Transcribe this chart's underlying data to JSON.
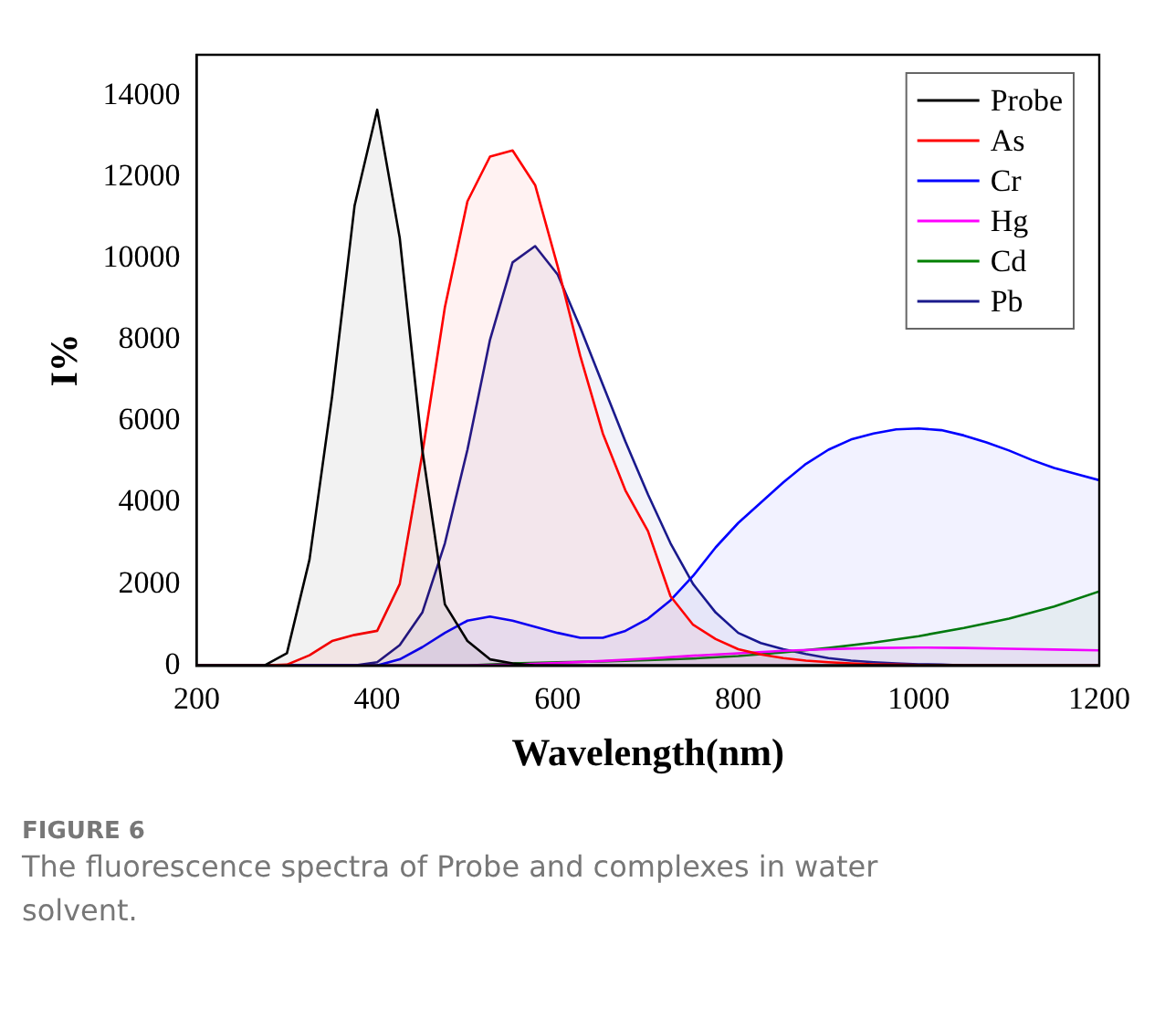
{
  "chart_data": {
    "type": "area",
    "xlabel": "Wavelength(nm)",
    "ylabel": "I%",
    "xlim": [
      200,
      1200
    ],
    "xticks": [
      200,
      400,
      600,
      800,
      1000,
      1200
    ],
    "ylim": [
      0,
      15000
    ],
    "yticks": [
      0,
      2000,
      4000,
      6000,
      8000,
      10000,
      12000,
      14000
    ],
    "grid": false,
    "legend": "top right",
    "line_style": "solid",
    "marker": "none",
    "annotations": [
      "FIGURE 6",
      "The fluorescence spectra of Probe and complexes in water solvent."
    ],
    "series": [
      {
        "name": "Probe",
        "color": "#000000",
        "x": [
          200,
          225,
          250,
          275,
          300,
          325,
          350,
          375,
          400,
          425,
          450,
          475,
          500,
          525,
          550,
          575,
          600,
          1200
        ],
        "values": [
          0,
          0,
          0,
          0,
          300,
          2600,
          6600,
          11300,
          13650,
          10500,
          5300,
          1500,
          600,
          150,
          50,
          0,
          0,
          0
        ]
      },
      {
        "name": "As",
        "color": "#ff0000",
        "x": [
          200,
          225,
          250,
          275,
          300,
          325,
          350,
          375,
          400,
          425,
          450,
          475,
          500,
          525,
          550,
          575,
          600,
          625,
          650,
          675,
          700,
          725,
          750,
          775,
          800,
          825,
          850,
          875,
          900,
          925,
          950,
          975,
          1000,
          1050,
          1200
        ],
        "values": [
          0,
          0,
          0,
          0,
          20,
          250,
          600,
          750,
          850,
          2000,
          5200,
          8800,
          11400,
          12500,
          12650,
          11800,
          9800,
          7600,
          5700,
          4300,
          3300,
          1700,
          1000,
          650,
          400,
          270,
          180,
          120,
          80,
          50,
          30,
          20,
          10,
          0,
          0
        ]
      },
      {
        "name": "Cr",
        "color": "#0000ff",
        "x": [
          200,
          375,
          400,
          425,
          450,
          475,
          500,
          525,
          550,
          575,
          600,
          625,
          650,
          675,
          700,
          725,
          750,
          775,
          800,
          825,
          850,
          875,
          900,
          925,
          950,
          975,
          1000,
          1025,
          1050,
          1075,
          1100,
          1125,
          1150,
          1175,
          1200
        ],
        "values": [
          0,
          0,
          0,
          150,
          450,
          800,
          1100,
          1200,
          1100,
          950,
          800,
          680,
          680,
          850,
          1150,
          1600,
          2200,
          2900,
          3500,
          4000,
          4500,
          4950,
          5300,
          5550,
          5700,
          5800,
          5820,
          5780,
          5650,
          5480,
          5280,
          5050,
          4850,
          4700,
          4550
        ]
      },
      {
        "name": "Hg",
        "color": "#ff00ff",
        "x": [
          200,
          500,
          550,
          600,
          650,
          700,
          750,
          800,
          850,
          900,
          950,
          1000,
          1050,
          1100,
          1150,
          1200
        ],
        "values": [
          0,
          0,
          20,
          60,
          110,
          170,
          240,
          300,
          360,
          400,
          430,
          440,
          430,
          410,
          390,
          370
        ]
      },
      {
        "name": "Cd",
        "color": "#008000",
        "x": [
          200,
          500,
          550,
          600,
          650,
          700,
          750,
          800,
          850,
          900,
          950,
          1000,
          1050,
          1100,
          1150,
          1200
        ],
        "values": [
          0,
          0,
          50,
          80,
          100,
          130,
          170,
          230,
          320,
          430,
          560,
          720,
          920,
          1150,
          1450,
          1820
        ]
      },
      {
        "name": "Pb",
        "color": "#1a1a8c",
        "x": [
          200,
          375,
          400,
          425,
          450,
          475,
          500,
          525,
          550,
          575,
          600,
          625,
          650,
          675,
          700,
          725,
          750,
          775,
          800,
          825,
          850,
          875,
          900,
          925,
          950,
          975,
          1000,
          1025,
          1050,
          1200
        ],
        "values": [
          0,
          0,
          80,
          500,
          1300,
          3000,
          5300,
          8000,
          9900,
          10300,
          9600,
          8300,
          6900,
          5500,
          4200,
          3000,
          2000,
          1300,
          800,
          550,
          400,
          280,
          180,
          120,
          80,
          50,
          30,
          20,
          0,
          0
        ]
      }
    ]
  }
}
